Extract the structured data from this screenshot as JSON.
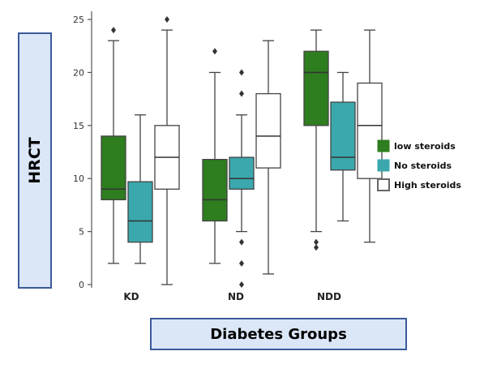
{
  "chart_data": {
    "type": "boxplot",
    "ylabel": "HRCT",
    "xlabel": "Diabetes Groups",
    "ylim": [
      0,
      25
    ],
    "yticks": [
      0,
      5,
      10,
      15,
      20,
      25
    ],
    "categories": [
      "KD",
      "ND",
      "NDD"
    ],
    "series": [
      {
        "name": "low steroids",
        "color": "#2e7d1f",
        "boxes": [
          {
            "min": 2,
            "q1": 8,
            "median": 9,
            "q3": 14,
            "max": 23,
            "outliers": [
              24
            ]
          },
          {
            "min": 2,
            "q1": 6,
            "median": 8,
            "q3": 11.8,
            "max": 20,
            "outliers": [
              22
            ]
          },
          {
            "min": 5,
            "q1": 15,
            "median": 20,
            "q3": 22,
            "max": 24,
            "outliers": [
              4,
              3.5
            ]
          }
        ]
      },
      {
        "name": "No steroids",
        "color": "#3aa8ad",
        "boxes": [
          {
            "min": 2,
            "q1": 4,
            "median": 6,
            "q3": 9.7,
            "max": 16,
            "outliers": []
          },
          {
            "min": 5,
            "q1": 9,
            "median": 10,
            "q3": 12,
            "max": 16,
            "outliers": [
              20,
              18,
              4,
              2,
              0
            ]
          },
          {
            "min": 6,
            "q1": 10.8,
            "median": 12,
            "q3": 17.2,
            "max": 20,
            "outliers": []
          }
        ]
      },
      {
        "name": "High steroids",
        "color": "#ffffff",
        "boxes": [
          {
            "min": 0,
            "q1": 9,
            "median": 12,
            "q3": 15,
            "max": 24,
            "outliers": [
              25
            ]
          },
          {
            "min": 1,
            "q1": 11,
            "median": 14,
            "q3": 18,
            "max": 23,
            "outliers": []
          },
          {
            "min": 4,
            "q1": 10,
            "median": 15,
            "q3": 19,
            "max": 24,
            "outliers": []
          }
        ]
      }
    ],
    "legend": "right"
  }
}
